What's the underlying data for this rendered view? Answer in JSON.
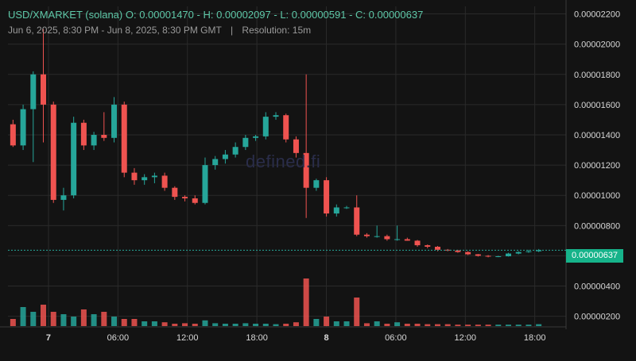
{
  "header": {
    "symbol": "USD/XMARKET (solana)",
    "open": "O: 0.00001470",
    "high": "H: 0.00002097",
    "low": "L: 0.00000591",
    "close": "C: 0.00000637",
    "date_range": "Jun 6, 2025, 8:30 PM - Jun 8, 2025, 8:30 PM GMT",
    "separator": "|",
    "resolution": "Resolution: 15m"
  },
  "watermark": "defined.fi",
  "current_price_label": "0.00000637",
  "colors": {
    "background": "#131313",
    "up": "#26a69a",
    "down": "#ef5350",
    "grid": "#2a2a2a",
    "axis_text": "#d8d8d8",
    "price_line": "#26a69a"
  },
  "chart_data": {
    "type": "candlestick",
    "title": "USD/XMARKET (solana)",
    "xlabel": "",
    "ylabel": "",
    "y_ticks": [
      "0.00000200",
      "0.00000400",
      "0.00000600",
      "0.00000800",
      "0.00001000",
      "0.00001200",
      "0.00001400",
      "0.00001600",
      "0.00001800",
      "0.00002000",
      "0.00002200"
    ],
    "y_tick_values": [
      2e-06,
      4e-06,
      6e-06,
      8e-06,
      1e-05,
      1.2e-05,
      1.4e-05,
      1.6e-05,
      1.8e-05,
      2e-05,
      2.2e-05
    ],
    "ylim": [
      1.3e-06,
      2.25e-05
    ],
    "x_ticks": [
      "7",
      "06:00",
      "12:00",
      "18:00",
      "8",
      "06:00",
      "12:00",
      "18:00"
    ],
    "x_tick_hours": [
      3.5,
      9.5,
      15.5,
      21.5,
      27.5,
      33.5,
      39.5,
      45.5
    ],
    "xlim_hours": [
      0,
      48.2
    ],
    "current_price": 6.37e-06,
    "grid": true,
    "volume_pane": true,
    "candles_ohlc": [
      [
        1.47e-05,
        1.5e-05,
        1.32e-05,
        1.33e-05
      ],
      [
        1.33e-05,
        1.6e-05,
        1.3e-05,
        1.57e-05
      ],
      [
        1.57e-05,
        1.82e-05,
        1.22e-05,
        1.8e-05
      ],
      [
        1.8e-05,
        2.1e-05,
        1.35e-05,
        1.6e-05
      ],
      [
        1.6e-05,
        1.62e-05,
        9.5e-06,
        9.7e-06
      ],
      [
        9.7e-06,
        1.05e-05,
        9e-06,
        1e-05
      ],
      [
        1e-05,
        1.52e-05,
        9.8e-06,
        1.48e-05
      ],
      [
        1.48e-05,
        1.5e-05,
        1.3e-05,
        1.33e-05
      ],
      [
        1.33e-05,
        1.42e-05,
        1.3e-05,
        1.4e-05
      ],
      [
        1.4e-05,
        1.55e-05,
        1.36e-05,
        1.38e-05
      ],
      [
        1.38e-05,
        1.65e-05,
        1.35e-05,
        1.6e-05
      ],
      [
        1.6e-05,
        1.62e-05,
        1.12e-05,
        1.15e-05
      ],
      [
        1.15e-05,
        1.18e-05,
        1.07e-05,
        1.1e-05
      ],
      [
        1.1e-05,
        1.14e-05,
        1.07e-05,
        1.12e-05
      ],
      [
        1.12e-05,
        1.15e-05,
        1.08e-05,
        1.13e-05
      ],
      [
        1.13e-05,
        1.15e-05,
        1.03e-05,
        1.05e-05
      ],
      [
        1.05e-05,
        1.06e-05,
        9.7e-06,
        9.9e-06
      ],
      [
        9.9e-06,
        1e-05,
        9.6e-06,
        9.8e-06
      ],
      [
        9.8e-06,
        1e-05,
        9.4e-06,
        9.5e-06
      ],
      [
        9.5e-06,
        1.25e-05,
        9.4e-06,
        1.2e-05
      ],
      [
        1.2e-05,
        1.26e-05,
        1.17e-05,
        1.24e-05
      ],
      [
        1.24e-05,
        1.3e-05,
        1.21e-05,
        1.27e-05
      ],
      [
        1.27e-05,
        1.35e-05,
        1.25e-05,
        1.32e-05
      ],
      [
        1.32e-05,
        1.4e-05,
        1.3e-05,
        1.38e-05
      ],
      [
        1.38e-05,
        1.4e-05,
        1.36e-05,
        1.39e-05
      ],
      [
        1.39e-05,
        1.55e-05,
        1.37e-05,
        1.52e-05
      ],
      [
        1.52e-05,
        1.55e-05,
        1.5e-05,
        1.53e-05
      ],
      [
        1.53e-05,
        1.54e-05,
        1.35e-05,
        1.37e-05
      ],
      [
        1.37e-05,
        1.39e-05,
        1.25e-05,
        1.28e-05
      ],
      [
        1.28e-05,
        1.8e-05,
        8.5e-06,
        1.05e-05
      ],
      [
        1.05e-05,
        1.11e-05,
        1.03e-05,
        1.1e-05
      ],
      [
        1.1e-05,
        1.12e-05,
        8.6e-06,
        8.8e-06
      ],
      [
        8.8e-06,
        9.4e-06,
        8.6e-06,
        9.2e-06
      ],
      [
        9.2e-06,
        9.3e-06,
        9.1e-06,
        9.2e-06
      ],
      [
        9.2e-06,
        1e-05,
        7.3e-06,
        7.4e-06
      ],
      [
        7.4e-06,
        7.5e-06,
        7.2e-06,
        7.3e-06
      ],
      [
        7.3e-06,
        8e-06,
        7.2e-06,
        7.3e-06
      ],
      [
        7.3e-06,
        7.4e-06,
        7e-06,
        7.1e-06
      ],
      [
        7.1e-06,
        8e-06,
        7e-06,
        7.1e-06
      ],
      [
        7.1e-06,
        7.2e-06,
        7e-06,
        7e-06
      ],
      [
        7e-06,
        7.05e-06,
        6.6e-06,
        6.7e-06
      ],
      [
        6.7e-06,
        6.75e-06,
        6.5e-06,
        6.6e-06
      ],
      [
        6.6e-06,
        6.65e-06,
        6.3e-06,
        6.4e-06
      ],
      [
        6.4e-06,
        6.45e-06,
        6.3e-06,
        6.35e-06
      ],
      [
        6.35e-06,
        6.4e-06,
        6.2e-06,
        6.25e-06
      ],
      [
        6.25e-06,
        6.3e-06,
        6.05e-06,
        6.1e-06
      ],
      [
        6.1e-06,
        6.12e-06,
        5.95e-06,
        6e-06
      ],
      [
        6e-06,
        6.05e-06,
        5.9e-06,
        5.95e-06
      ],
      [
        5.95e-06,
        6e-06,
        5.91e-06,
        5.97e-06
      ],
      [
        5.97e-06,
        6.2e-06,
        5.95e-06,
        6.15e-06
      ],
      [
        6.15e-06,
        6.3e-06,
        6.1e-06,
        6.25e-06
      ],
      [
        6.25e-06,
        6.4e-06,
        6.2e-06,
        6.3e-06
      ],
      [
        6.3e-06,
        6.45e-06,
        6.25e-06,
        6.37e-06
      ]
    ],
    "volume_relative": [
      0.15,
      0.4,
      0.3,
      0.45,
      0.3,
      0.25,
      0.2,
      0.35,
      0.25,
      0.3,
      0.2,
      0.15,
      0.15,
      0.1,
      0.1,
      0.08,
      0.05,
      0.06,
      0.05,
      0.12,
      0.06,
      0.05,
      0.05,
      0.06,
      0.05,
      0.05,
      0.04,
      0.05,
      0.08,
      1.0,
      0.15,
      0.2,
      0.1,
      0.1,
      0.6,
      0.06,
      0.1,
      0.05,
      0.08,
      0.05,
      0.05,
      0.04,
      0.04,
      0.04,
      0.03,
      0.03,
      0.03,
      0.03,
      0.03,
      0.03,
      0.03,
      0.03,
      0.04
    ]
  }
}
